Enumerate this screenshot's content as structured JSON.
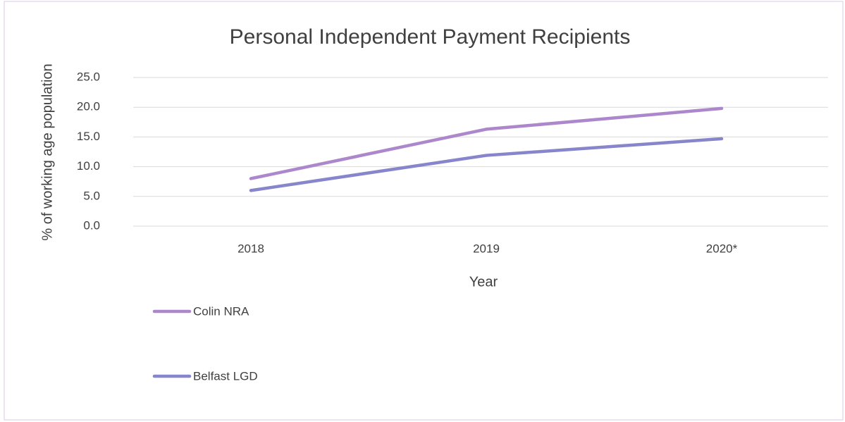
{
  "chart_data": {
    "type": "line",
    "title": "Personal Independent Payment Recipients",
    "xlabel": "Year",
    "ylabel": "% of working age population",
    "categories": [
      "2018",
      "2019",
      "2020*"
    ],
    "series": [
      {
        "name": "Colin NRA",
        "color": "#ad87cc",
        "values": [
          8.0,
          16.3,
          19.8
        ]
      },
      {
        "name": "Belfast LGD",
        "color": "#8785cb",
        "values": [
          6.0,
          11.9,
          14.7
        ]
      }
    ],
    "ylim": [
      0,
      25
    ],
    "yticks": [
      {
        "value": 0,
        "label": "0.0"
      },
      {
        "value": 5,
        "label": "5.0"
      },
      {
        "value": 10,
        "label": "10.0"
      },
      {
        "value": 15,
        "label": "15.0"
      },
      {
        "value": 20,
        "label": "20.0"
      },
      {
        "value": 25,
        "label": "25.0"
      }
    ],
    "grid": true
  }
}
